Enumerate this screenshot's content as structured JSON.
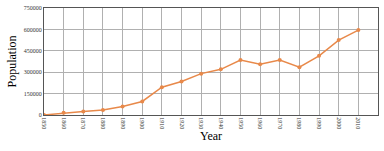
{
  "chart_data": {
    "type": "line",
    "x_label": "Year",
    "y_label": "Population",
    "x": [
      1850,
      1860,
      1870,
      1880,
      1890,
      1900,
      1910,
      1920,
      1930,
      1940,
      1950,
      1960,
      1970,
      1980,
      1990,
      2000,
      2010
    ],
    "series": [
      {
        "name": "Population",
        "color": "#e8894a",
        "marker": "circle",
        "line_style": "solid",
        "values": [
          0,
          15000,
          25000,
          35000,
          60000,
          95000,
          195000,
          235000,
          290000,
          320000,
          385000,
          355000,
          385000,
          335000,
          415000,
          525000,
          595000
        ]
      }
    ],
    "xlim": [
      1850,
      2020
    ],
    "xticks": [
      1850,
      1860,
      1870,
      1880,
      1890,
      1900,
      1910,
      1920,
      1930,
      1940,
      1950,
      1960,
      1970,
      1980,
      1990,
      2000,
      2010
    ],
    "ylim": [
      0,
      750000
    ],
    "yticks": [
      0,
      150000,
      300000,
      450000,
      600000,
      750000
    ],
    "grid": true
  }
}
